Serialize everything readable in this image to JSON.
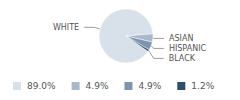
{
  "chart_data": {
    "type": "pie",
    "categories": [
      "WHITE",
      "ASIAN",
      "HISPANIC",
      "BLACK"
    ],
    "values": [
      89.0,
      4.9,
      4.9,
      1.2
    ],
    "value_labels": [
      "89.0%",
      "4.9%",
      "4.9%",
      "1.2%"
    ],
    "colors": [
      "#d8e0ea",
      "#a9b8cb",
      "#7d93ae",
      "#2e4e6e"
    ],
    "legend": "bottom"
  }
}
